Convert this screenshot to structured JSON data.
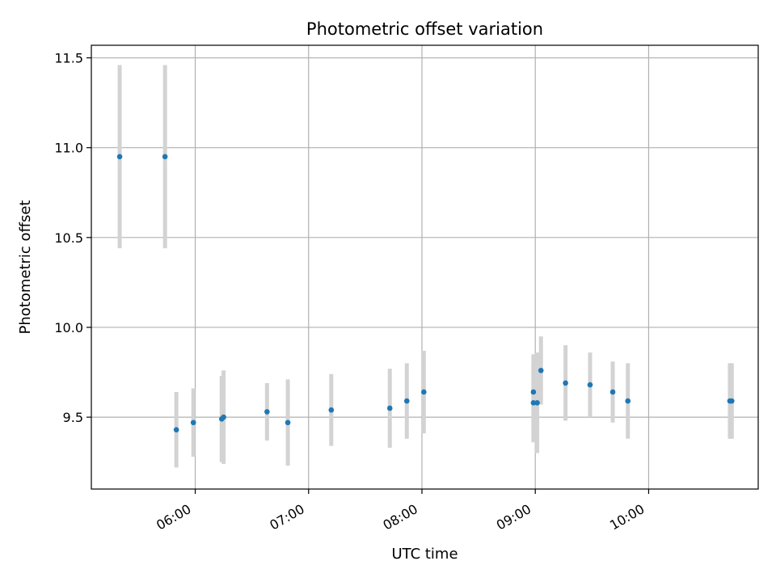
{
  "chart_data": {
    "type": "scatter",
    "title": "Photometric offset variation",
    "xlabel": "UTC time",
    "ylabel": "Photometric offset",
    "x_axis_type": "time",
    "xlim": [
      "05:05",
      "10:58"
    ],
    "ylim": [
      9.1,
      11.57
    ],
    "x_ticks": [
      "06:00",
      "07:00",
      "08:00",
      "09:00",
      "10:00"
    ],
    "y_ticks": [
      "9.5",
      "10.0",
      "10.5",
      "11.0",
      "11.5"
    ],
    "grid": true,
    "error_bars": true,
    "point_color": "#1f77b4",
    "errorbar_color": "#d3d3d3",
    "points": [
      {
        "x": "05:20",
        "y": 10.95,
        "err": 0.51
      },
      {
        "x": "05:44",
        "y": 10.95,
        "err": 0.51
      },
      {
        "x": "05:50",
        "y": 9.43,
        "err": 0.21
      },
      {
        "x": "05:59",
        "y": 9.47,
        "err": 0.19
      },
      {
        "x": "06:14",
        "y": 9.49,
        "err": 0.24
      },
      {
        "x": "06:15",
        "y": 9.5,
        "err": 0.26
      },
      {
        "x": "06:38",
        "y": 9.53,
        "err": 0.16
      },
      {
        "x": "06:49",
        "y": 9.47,
        "err": 0.24
      },
      {
        "x": "07:12",
        "y": 9.54,
        "err": 0.2
      },
      {
        "x": "07:43",
        "y": 9.55,
        "err": 0.22
      },
      {
        "x": "07:52",
        "y": 9.59,
        "err": 0.21
      },
      {
        "x": "08:01",
        "y": 9.64,
        "err": 0.23
      },
      {
        "x": "08:59",
        "y": 9.64,
        "err": 0.21
      },
      {
        "x": "08:59",
        "y": 9.58,
        "err": 0.22
      },
      {
        "x": "09:01",
        "y": 9.58,
        "err": 0.28
      },
      {
        "x": "09:03",
        "y": 9.76,
        "err": 0.19
      },
      {
        "x": "09:16",
        "y": 9.69,
        "err": 0.21
      },
      {
        "x": "09:29",
        "y": 9.68,
        "err": 0.18
      },
      {
        "x": "09:41",
        "y": 9.64,
        "err": 0.17
      },
      {
        "x": "09:49",
        "y": 9.59,
        "err": 0.21
      },
      {
        "x": "10:43",
        "y": 9.59,
        "err": 0.21
      },
      {
        "x": "10:44",
        "y": 9.59,
        "err": 0.21
      }
    ]
  }
}
